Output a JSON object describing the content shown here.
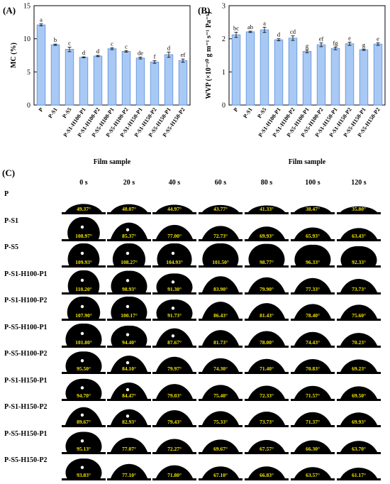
{
  "chart_data": [
    {
      "type": "bar",
      "panel": "(A)",
      "xlabel": "Film sample",
      "ylabel": "MC (%)",
      "ylim": [
        0,
        15
      ],
      "yticks": [
        0,
        5,
        10,
        15
      ],
      "categories": [
        "P",
        "P-S1",
        "P-S5",
        "P-S1-H100-P1",
        "P-S1-H100-P2",
        "P-S5-H100-P1",
        "P-S5-H100-P2",
        "P-S1-H150-P1",
        "P-S1-H150-P2",
        "P-S5-H150-P1",
        "P-S5-H150-P2"
      ],
      "values": [
        12.1,
        9.1,
        8.4,
        7.2,
        7.4,
        8.5,
        8.1,
        7.1,
        6.5,
        7.6,
        6.7
      ],
      "errors": [
        0.15,
        0.1,
        0.35,
        0.08,
        0.1,
        0.15,
        0.12,
        0.15,
        0.2,
        0.4,
        0.25
      ],
      "letters": [
        "a",
        "b",
        "c",
        "d",
        "d",
        "c",
        "c",
        "de",
        "f",
        "d",
        "ef"
      ],
      "bar_color": "#a9c9f5",
      "bar_edge": "#5b8fd8"
    },
    {
      "type": "bar",
      "panel": "(B)",
      "xlabel": "Film sample",
      "ylabel": "WVP (×10⁻¹⁰ g m⁻¹ s⁻¹ Pa⁻¹)",
      "ylim": [
        0,
        3
      ],
      "yticks": [
        0,
        1,
        2,
        3
      ],
      "categories": [
        "P",
        "P-S1",
        "P-S5",
        "P-S1-H100-P1",
        "P-S1-H100-P2",
        "P-S5-H100-P1",
        "P-S5-H100-P2",
        "P-S1-H150-P1",
        "P-S1-H150-P2",
        "P-S5-H150-P1",
        "P-S5-H150-P2"
      ],
      "values": [
        2.12,
        2.21,
        2.27,
        1.97,
        2.02,
        1.62,
        1.82,
        1.71,
        1.85,
        1.67,
        1.84
      ],
      "errors": [
        0.08,
        0.02,
        0.08,
        0.03,
        0.07,
        0.04,
        0.06,
        0.04,
        0.05,
        0.02,
        0.04
      ],
      "letters": [
        "bc",
        "ab",
        "a",
        "d",
        "cd",
        "g",
        "ef",
        "fg",
        "e",
        "g",
        "e"
      ],
      "bar_color": "#a9c9f5",
      "bar_edge": "#5b8fd8"
    },
    {
      "type": "table",
      "panel": "(C)",
      "columns": [
        "0 s",
        "20 s",
        "40 s",
        "60 s",
        "80 s",
        "100 s",
        "120 s"
      ],
      "rows": [
        {
          "label": "P",
          "angles": [
            "49.37°",
            "48.07°",
            "44.97°",
            "43.77°",
            "41.33°",
            "38.47°",
            "35.80°"
          ],
          "values": [
            49.37,
            48.07,
            44.97,
            43.77,
            41.33,
            38.47,
            35.8
          ]
        },
        {
          "label": "P-S1",
          "angles": [
            "108.97°",
            "85.37°",
            "77.00°",
            "72.73°",
            "69.93°",
            "65.93°",
            "63.43°"
          ],
          "values": [
            108.97,
            85.37,
            77.0,
            72.73,
            69.93,
            65.93,
            63.43
          ]
        },
        {
          "label": "P-S5",
          "angles": [
            "109.93°",
            "108.27°",
            "104.93°",
            "101.50°",
            "98.77°",
            "96.33°",
            "92.33°"
          ],
          "values": [
            109.93,
            108.27,
            104.93,
            101.5,
            98.77,
            96.33,
            92.33
          ]
        },
        {
          "label": "P-S1-H100-P1",
          "angles": [
            "110.20°",
            "98.93°",
            "91.30°",
            "83.90°",
            "79.90°",
            "77.33°",
            "73.73°"
          ],
          "values": [
            110.2,
            98.93,
            91.3,
            83.9,
            79.9,
            77.33,
            73.73
          ]
        },
        {
          "label": "P-S1-H100-P2",
          "angles": [
            "107.90°",
            "100.17°",
            "91.73°",
            "86.43°",
            "81.43°",
            "78.40°",
            "75.60°"
          ],
          "values": [
            107.9,
            100.17,
            91.73,
            86.43,
            81.43,
            78.4,
            75.6
          ]
        },
        {
          "label": "P-S5-H100-P1",
          "angles": [
            "101.80°",
            "94.40°",
            "87.67°",
            "81.73°",
            "78.00°",
            "74.43°",
            "70.23°"
          ],
          "values": [
            101.8,
            94.4,
            87.67,
            81.73,
            78.0,
            74.43,
            70.23
          ]
        },
        {
          "label": "P-S5-H100-P2",
          "angles": [
            "95.50°",
            "84.10°",
            "79.97°",
            "74.30°",
            "71.40°",
            "70.83°",
            "69.23°"
          ],
          "values": [
            95.5,
            84.1,
            79.97,
            74.3,
            71.4,
            70.83,
            69.23
          ]
        },
        {
          "label": "P-S1-H150-P1",
          "angles": [
            "94.70°",
            "84.47°",
            "79.03°",
            "75.40°",
            "72.33°",
            "71.57°",
            "69.50°"
          ],
          "values": [
            94.7,
            84.47,
            79.03,
            75.4,
            72.33,
            71.57,
            69.5
          ]
        },
        {
          "label": "P-S1-H150-P2",
          "angles": [
            "89.67°",
            "82.93°",
            "79.43°",
            "75.33°",
            "73.73°",
            "71.37°",
            "69.93°"
          ],
          "values": [
            89.67,
            82.93,
            79.43,
            75.33,
            73.73,
            71.37,
            69.93
          ]
        },
        {
          "label": "P-S5-H150-P1",
          "angles": [
            "95.13°",
            "77.07°",
            "72.27°",
            "69.67°",
            "67.57°",
            "66.30°",
            "63.70°"
          ],
          "values": [
            95.13,
            77.07,
            72.27,
            69.67,
            67.57,
            66.3,
            63.7
          ]
        },
        {
          "label": "P-S5-H150-P2",
          "angles": [
            "93.83°",
            "77.10°",
            "71.80°",
            "67.10°",
            "66.83°",
            "63.57°",
            "61.17°"
          ],
          "values": [
            93.83,
            77.1,
            71.8,
            67.1,
            66.83,
            63.57,
            61.17
          ]
        }
      ],
      "angle_color": "#f2e600"
    }
  ]
}
